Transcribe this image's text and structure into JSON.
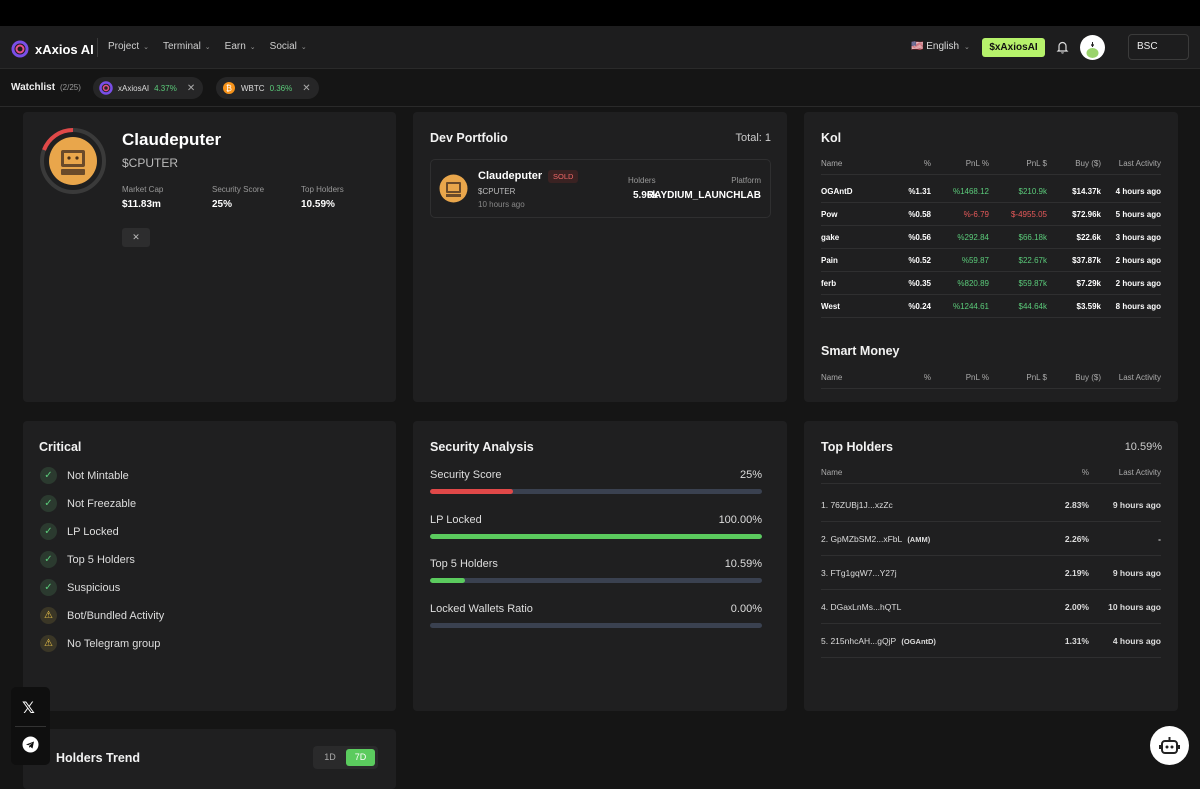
{
  "nav": {
    "brand": "xAxios AI",
    "menu": [
      "Project",
      "Terminal",
      "Earn",
      "Social"
    ],
    "language": "🇺🇸 English",
    "token_button": "$xAxiosAI",
    "chain": "BSC"
  },
  "watchlist": {
    "title": "Watchlist",
    "count": "(2/25)",
    "items": [
      {
        "name": "xAxiosAI",
        "pct": "4.37%"
      },
      {
        "name": "WBTC",
        "pct": "0.36%"
      }
    ]
  },
  "token": {
    "name": "Claudeputer",
    "symbol": "$CPUTER",
    "stats": [
      {
        "label": "Market Cap",
        "value": "$11.83m"
      },
      {
        "label": "Security Score",
        "value": "25%"
      },
      {
        "label": "Top Holders",
        "value": "10.59%"
      }
    ],
    "social_icon": "x-icon"
  },
  "dev": {
    "title": "Dev Portfolio",
    "total": "Total: 1",
    "item": {
      "name": "Claudeputer",
      "badge": "SOLD",
      "symbol": "$CPUTER",
      "time": "10 hours ago",
      "holders_label": "Holders",
      "holders": "5.96k",
      "platform_label": "Platform",
      "platform": "RAYDIUM_LAUNCHLAB"
    }
  },
  "kol": {
    "title": "Kol",
    "headers": [
      "Name",
      "%",
      "PnL %",
      "PnL $",
      "Buy ($)",
      "Last Activity"
    ],
    "rows": [
      {
        "name": "OGAntD",
        "pct": "%1.31",
        "pnlp": "%1468.12",
        "pnld": "$210.9k",
        "buy": "$14.37k",
        "last": "4 hours ago",
        "neg": false
      },
      {
        "name": "Pow",
        "pct": "%0.58",
        "pnlp": "%-6.79",
        "pnld": "$-4955.05",
        "buy": "$72.96k",
        "last": "5 hours ago",
        "neg": true
      },
      {
        "name": "gake",
        "pct": "%0.56",
        "pnlp": "%292.84",
        "pnld": "$66.18k",
        "buy": "$22.6k",
        "last": "3 hours ago",
        "neg": false
      },
      {
        "name": "Pain",
        "pct": "%0.52",
        "pnlp": "%59.87",
        "pnld": "$22.67k",
        "buy": "$37.87k",
        "last": "2 hours ago",
        "neg": false
      },
      {
        "name": "ferb",
        "pct": "%0.35",
        "pnlp": "%820.89",
        "pnld": "$59.87k",
        "buy": "$7.29k",
        "last": "2 hours ago",
        "neg": false
      },
      {
        "name": "West",
        "pct": "%0.24",
        "pnlp": "%1244.61",
        "pnld": "$44.64k",
        "buy": "$3.59k",
        "last": "8 hours ago",
        "neg": false
      }
    ],
    "smart_title": "Smart Money"
  },
  "critical": {
    "title": "Critical",
    "items": [
      {
        "label": "Not Mintable",
        "ok": true
      },
      {
        "label": "Not Freezable",
        "ok": true
      },
      {
        "label": "LP Locked",
        "ok": true
      },
      {
        "label": "Top 5 Holders",
        "ok": true
      },
      {
        "label": "Suspicious",
        "ok": true
      },
      {
        "label": "Bot/Bundled Activity",
        "ok": false
      },
      {
        "label": "No Telegram group",
        "ok": false
      }
    ]
  },
  "security": {
    "title": "Security Analysis",
    "items": [
      {
        "label": "Security Score",
        "value": "25%",
        "fraction": 0.25,
        "color": "#e04848"
      },
      {
        "label": "LP Locked",
        "value": "100.00%",
        "fraction": 1.0,
        "color": "#5bcb5e"
      },
      {
        "label": "Top 5 Holders",
        "value": "10.59%",
        "fraction": 0.1059,
        "color": "#5bcb5e"
      },
      {
        "label": "Locked Wallets Ratio",
        "value": "0.00%",
        "fraction": 0.0,
        "color": "#5bcb5e"
      }
    ]
  },
  "top_holders": {
    "title": "Top Holders",
    "total": "10.59%",
    "headers": [
      "Name",
      "%",
      "Last Activity"
    ],
    "rows": [
      {
        "name": "1. 76ZUBj1J...xzZc",
        "tag": "",
        "pct": "2.83%",
        "last": "9 hours ago"
      },
      {
        "name": "2. GpMZbSM2...xFbL",
        "tag": "(AMM)",
        "pct": "2.26%",
        "last": "-"
      },
      {
        "name": "3. FTg1gqW7...Y27j",
        "tag": "",
        "pct": "2.19%",
        "last": "9 hours ago"
      },
      {
        "name": "4. DGaxLnMs...hQTL",
        "tag": "",
        "pct": "2.00%",
        "last": "10 hours ago"
      },
      {
        "name": "5. 215nhcAH...gQjP",
        "tag": "(OGAntD)",
        "pct": "1.31%",
        "last": "4 hours ago"
      }
    ]
  },
  "trend": {
    "title": "Holders Trend",
    "ranges": [
      "1D",
      "7D"
    ],
    "active": "7D"
  },
  "colors": {
    "accent": "#b6f26b",
    "positive": "#5bcb7a",
    "negative": "#e85a5a"
  }
}
